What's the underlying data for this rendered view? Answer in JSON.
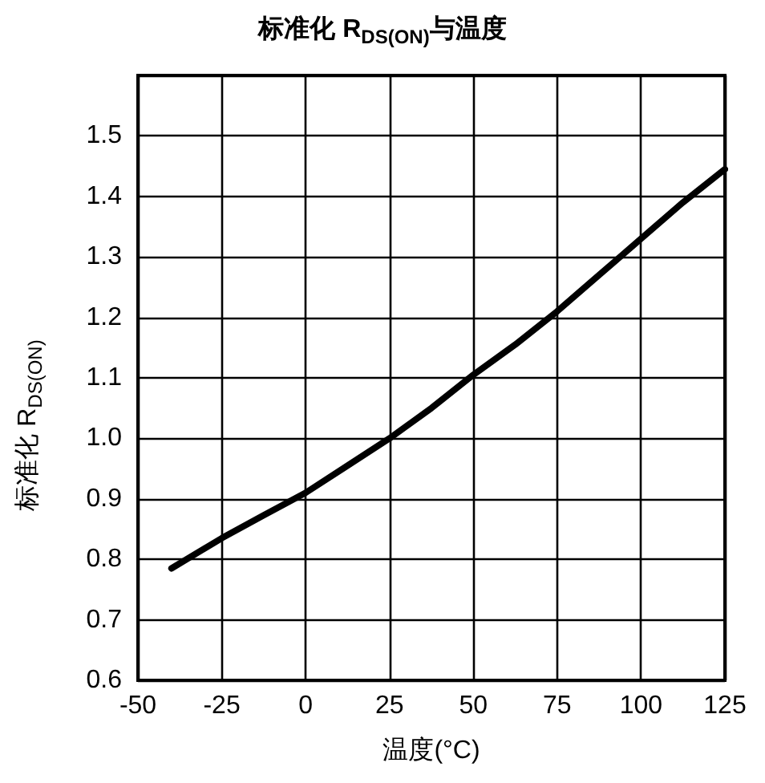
{
  "chart_data": {
    "type": "line",
    "title": "标准化 R$_{DS(ON)}$与温度",
    "xlabel": "温度(°C)",
    "ylabel": "标准化 R$_{DS(ON)}$",
    "x": [
      -40,
      -25,
      -12.5,
      0,
      12.5,
      25,
      37.5,
      50,
      62.5,
      75,
      87.5,
      100,
      112.5,
      125
    ],
    "series": [
      {
        "color": "#000000",
        "values": [
          0.785,
          0.835,
          0.873,
          0.91,
          0.955,
          1.0,
          1.05,
          1.105,
          1.155,
          1.21,
          1.27,
          1.33,
          1.39,
          1.445
        ]
      }
    ],
    "xlim": [
      -50,
      125
    ],
    "xticks": [
      -50,
      -25,
      0,
      25,
      50,
      75,
      100,
      125
    ],
    "ylim": [
      0.6,
      1.6
    ],
    "yticks": [
      0.6,
      0.7,
      0.8,
      0.9,
      {
        "value": 1,
        "label": "1.0"
      },
      1.1,
      1.2,
      1.3,
      1.4,
      1.5
    ],
    "grid": true,
    "marker": "none",
    "line_style": "solid"
  }
}
